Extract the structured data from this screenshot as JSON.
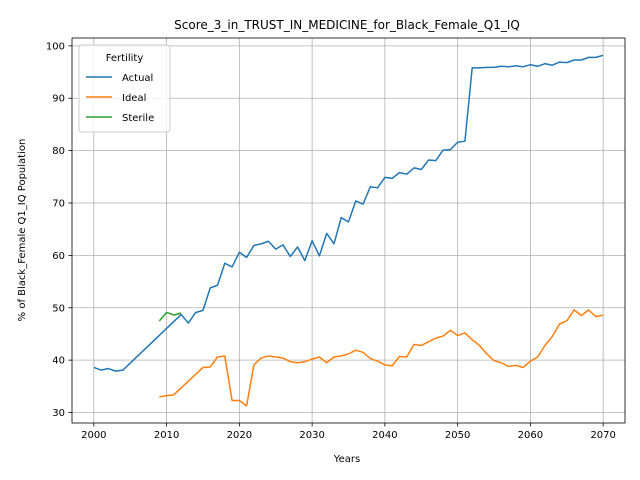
{
  "chart_data": {
    "type": "line",
    "title": "Score_3_in_TRUST_IN_MEDICINE_for_Black_Female_Q1_IQ",
    "xlabel": "Years",
    "ylabel": "% of Black_Female Q1_IQ Population",
    "xlim": [
      1997,
      2073
    ],
    "ylim": [
      28,
      101.5
    ],
    "xticks": [
      2000,
      2010,
      2020,
      2030,
      2040,
      2050,
      2060,
      2070
    ],
    "yticks": [
      30,
      40,
      50,
      60,
      70,
      80,
      90,
      100
    ],
    "grid": true,
    "legend": {
      "title": "Fertility",
      "position": "top-left"
    },
    "series": [
      {
        "name": "Actual",
        "color": "#1f77b4",
        "points": [
          [
            2000,
            38.6
          ],
          [
            2001,
            38.1
          ],
          [
            2002,
            38.4
          ],
          [
            2003,
            37.9
          ],
          [
            2004,
            38.1
          ],
          [
            2012,
            48.7
          ],
          [
            2013,
            47.1
          ],
          [
            2014,
            49.1
          ],
          [
            2015,
            49.5
          ],
          [
            2016,
            53.8
          ],
          [
            2017,
            54.3
          ],
          [
            2018,
            58.5
          ],
          [
            2019,
            57.8
          ],
          [
            2020,
            60.6
          ],
          [
            2021,
            59.6
          ],
          [
            2022,
            61.9
          ],
          [
            2023,
            62.2
          ],
          [
            2024,
            62.7
          ],
          [
            2025,
            61.2
          ],
          [
            2026,
            62.0
          ],
          [
            2027,
            59.8
          ],
          [
            2028,
            61.6
          ],
          [
            2029,
            59.0
          ],
          [
            2030,
            62.8
          ],
          [
            2031,
            59.9
          ],
          [
            2032,
            64.2
          ],
          [
            2033,
            62.2
          ],
          [
            2034,
            67.2
          ],
          [
            2035,
            66.4
          ],
          [
            2036,
            70.4
          ],
          [
            2037,
            69.8
          ],
          [
            2038,
            73.1
          ],
          [
            2039,
            72.9
          ],
          [
            2040,
            74.9
          ],
          [
            2041,
            74.7
          ],
          [
            2042,
            75.8
          ],
          [
            2043,
            75.5
          ],
          [
            2044,
            76.7
          ],
          [
            2045,
            76.4
          ],
          [
            2046,
            78.2
          ],
          [
            2047,
            78.1
          ],
          [
            2048,
            80.1
          ],
          [
            2049,
            80.2
          ],
          [
            2050,
            81.6
          ],
          [
            2051,
            81.8
          ],
          [
            2052,
            95.8
          ],
          [
            2053,
            95.8
          ],
          [
            2054,
            95.9
          ],
          [
            2055,
            95.9
          ],
          [
            2056,
            96.1
          ],
          [
            2057,
            96.0
          ],
          [
            2058,
            96.2
          ],
          [
            2059,
            96.0
          ],
          [
            2060,
            96.4
          ],
          [
            2061,
            96.1
          ],
          [
            2062,
            96.6
          ],
          [
            2063,
            96.3
          ],
          [
            2064,
            96.9
          ],
          [
            2065,
            96.8
          ],
          [
            2066,
            97.3
          ],
          [
            2067,
            97.3
          ],
          [
            2068,
            97.8
          ],
          [
            2069,
            97.8
          ],
          [
            2070,
            98.2
          ]
        ]
      },
      {
        "name": "Ideal",
        "color": "#ff7f0e",
        "points": [
          [
            2009,
            33.0
          ],
          [
            2010,
            33.2
          ],
          [
            2011,
            33.4
          ],
          [
            2015,
            38.6
          ],
          [
            2016,
            38.7
          ],
          [
            2017,
            40.6
          ],
          [
            2018,
            40.8
          ],
          [
            2019,
            32.3
          ],
          [
            2020,
            32.3
          ],
          [
            2021,
            31.3
          ],
          [
            2022,
            39.1
          ],
          [
            2023,
            40.4
          ],
          [
            2024,
            40.8
          ],
          [
            2025,
            40.6
          ],
          [
            2026,
            40.4
          ],
          [
            2027,
            39.7
          ],
          [
            2028,
            39.5
          ],
          [
            2029,
            39.7
          ],
          [
            2030,
            40.2
          ],
          [
            2031,
            40.6
          ],
          [
            2032,
            39.5
          ],
          [
            2033,
            40.6
          ],
          [
            2034,
            40.8
          ],
          [
            2035,
            41.2
          ],
          [
            2036,
            41.9
          ],
          [
            2037,
            41.5
          ],
          [
            2038,
            40.3
          ],
          [
            2039,
            39.8
          ],
          [
            2040,
            39.1
          ],
          [
            2041,
            38.9
          ],
          [
            2042,
            40.7
          ],
          [
            2043,
            40.6
          ],
          [
            2044,
            43.0
          ],
          [
            2045,
            42.8
          ],
          [
            2046,
            43.5
          ],
          [
            2047,
            44.2
          ],
          [
            2048,
            44.6
          ],
          [
            2049,
            45.7
          ],
          [
            2050,
            44.7
          ],
          [
            2051,
            45.2
          ],
          [
            2052,
            43.9
          ],
          [
            2053,
            42.8
          ],
          [
            2054,
            41.2
          ],
          [
            2055,
            39.9
          ],
          [
            2056,
            39.5
          ],
          [
            2057,
            38.8
          ],
          [
            2058,
            39.0
          ],
          [
            2059,
            38.6
          ],
          [
            2060,
            39.8
          ],
          [
            2061,
            40.6
          ],
          [
            2062,
            42.8
          ],
          [
            2063,
            44.5
          ],
          [
            2064,
            46.9
          ],
          [
            2065,
            47.5
          ],
          [
            2066,
            49.6
          ],
          [
            2067,
            48.5
          ],
          [
            2068,
            49.6
          ],
          [
            2069,
            48.3
          ],
          [
            2070,
            48.6
          ]
        ]
      },
      {
        "name": "Sterile",
        "color": "#2ca02c",
        "points": [
          [
            2009,
            47.5
          ],
          [
            2010,
            49.1
          ],
          [
            2011,
            48.6
          ],
          [
            2012,
            49.0
          ]
        ]
      }
    ]
  }
}
